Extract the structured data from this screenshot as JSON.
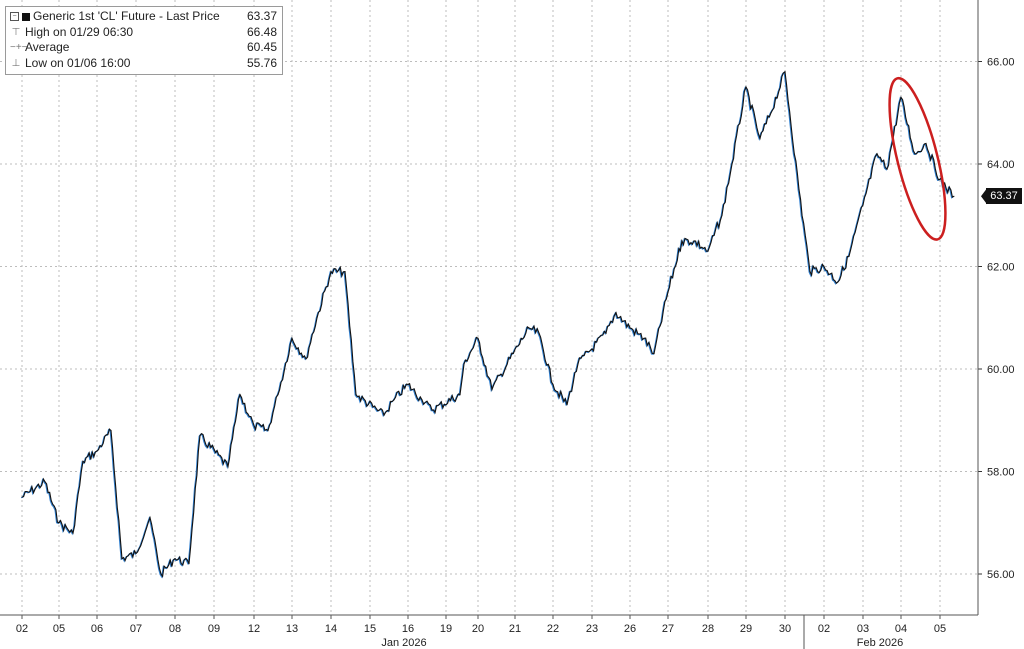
{
  "chart_data": {
    "type": "line",
    "title": "Generic 1st 'CL' Future - Last Price",
    "last_value": "63.37",
    "legend": [
      {
        "icon": "high-marker-icon",
        "label": "High on 01/29 06:30",
        "value": "66.48"
      },
      {
        "icon": "average-marker-icon",
        "label": "Average",
        "value": "60.45"
      },
      {
        "icon": "low-marker-icon",
        "label": "Low on 01/06 16:00",
        "value": "55.76"
      }
    ],
    "y_ticks": [
      "56.00",
      "58.00",
      "60.00",
      "62.00",
      "64.00",
      "66.00"
    ],
    "ylim": [
      55.2,
      67.2
    ],
    "x_ticks": [
      "02",
      "05",
      "06",
      "07",
      "08",
      "09",
      "12",
      "13",
      "14",
      "15",
      "16",
      "19",
      "20",
      "21",
      "22",
      "23",
      "26",
      "27",
      "28",
      "29",
      "30",
      "02",
      "03",
      "04",
      "05"
    ],
    "x_groups": [
      "Jan 2026",
      "Feb 2026"
    ],
    "grid": true,
    "highlight": "red ellipse around the Feb 04-05 price swing",
    "colors": {
      "series": "#111111",
      "accent": "#2f7fd0",
      "highlight": "#cc1f1f",
      "grid": "#bdbdbd"
    },
    "series": [
      {
        "x": [
          "01/02",
          "01/05",
          "01/05",
          "01/05",
          "01/06",
          "01/06",
          "01/06",
          "01/07",
          "01/07",
          "01/07",
          "01/08",
          "01/08",
          "01/08",
          "01/09",
          "01/09",
          "01/12",
          "01/12",
          "01/12",
          "01/13",
          "01/13",
          "01/13",
          "01/14",
          "01/14",
          "01/14",
          "01/15",
          "01/15",
          "01/16",
          "01/16",
          "01/16",
          "01/19",
          "01/19",
          "01/20",
          "01/20",
          "01/20",
          "01/21",
          "01/21",
          "01/22",
          "01/22",
          "01/22",
          "01/23",
          "01/23",
          "01/26",
          "01/26",
          "01/26",
          "01/27",
          "01/27",
          "01/27",
          "01/28",
          "01/28",
          "01/28",
          "01/29",
          "01/29",
          "01/29",
          "01/30",
          "01/30",
          "01/30",
          "02/02",
          "02/02",
          "02/02",
          "02/03",
          "02/03",
          "02/03",
          "02/04",
          "02/04",
          "02/04",
          "02/05",
          "02/05",
          "02/05"
        ],
        "values": [
          57.5,
          57.8,
          57.0,
          56.8,
          58.2,
          58.4,
          58.8,
          56.3,
          56.4,
          57.1,
          56.0,
          56.3,
          56.2,
          58.7,
          58.1,
          59.5,
          58.9,
          58.8,
          59.5,
          60.6,
          60.2,
          61.0,
          61.9,
          61.9,
          59.5,
          59.1,
          59.4,
          59.7,
          59.4,
          59.2,
          59.5,
          60.1,
          60.6,
          59.6,
          59.9,
          60.8,
          60.7,
          59.7,
          59.3,
          60.1,
          60.7,
          61.1,
          60.8,
          60.6,
          60.3,
          61.5,
          62.5,
          62.5,
          62.3,
          63.0,
          64.0,
          65.5,
          64.5,
          65.0,
          65.8,
          63.5,
          61.9,
          62.0,
          61.7,
          62.2,
          63.2,
          64.2,
          63.9,
          65.3,
          64.2,
          64.4,
          63.7,
          63.37
        ]
      }
    ]
  }
}
